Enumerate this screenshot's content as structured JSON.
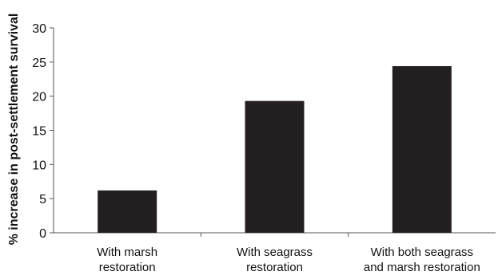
{
  "chart_data": {
    "type": "bar",
    "title": "",
    "xlabel": "",
    "ylabel": "% increase in post-settlement survival",
    "categories": [
      [
        "With marsh",
        "restoration"
      ],
      [
        "With seagrass",
        "restoration"
      ],
      [
        "With both seagrass",
        "and marsh restoration"
      ]
    ],
    "values": [
      6.2,
      19.3,
      24.4
    ],
    "ylim": [
      0,
      30
    ],
    "yticks": [
      0,
      5,
      10,
      15,
      20,
      25,
      30
    ],
    "grid": false,
    "legend": "none",
    "bar_color": "#231f20",
    "axis_color": "#555555"
  }
}
